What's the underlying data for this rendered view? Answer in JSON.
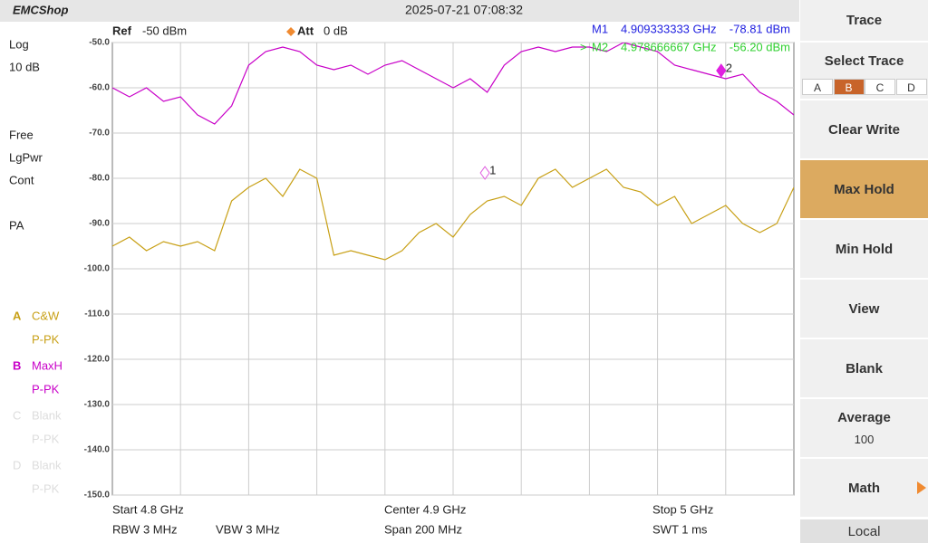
{
  "header": {
    "logo": "EMCShop",
    "datetime": "2025-07-21 07:08:32"
  },
  "settings": {
    "ref_label": "Ref",
    "ref": "-50 dBm",
    "att_label": "Att",
    "att": "0 dB"
  },
  "left_panel": {
    "scale": "Log",
    "div": "10 dB",
    "lines": [
      "Free",
      "LgPwr",
      "Cont"
    ],
    "pa": "PA",
    "inactive": [
      {
        "id": "C",
        "name": "Blank",
        "detector": "P-PK"
      },
      {
        "id": "D",
        "name": "Blank",
        "detector": "P-PK"
      }
    ]
  },
  "marker_readouts": [
    {
      "name": "M1",
      "freq": "4.909333333 GHz",
      "level": "-78.81 dBm",
      "color": "#2020e0"
    },
    {
      "prefix": ">",
      "name": "M2",
      "freq": "4.978666667 GHz",
      "level": "-56.20 dBm",
      "color": "#30d030"
    }
  ],
  "chart_data": {
    "type": "line",
    "xlim": [
      4.8,
      5.0
    ],
    "ylim": [
      -150,
      -50
    ],
    "yticks": [
      {
        "value": -50,
        "label": "-50.0"
      },
      {
        "value": -60,
        "label": "-60.0"
      },
      {
        "value": -70,
        "label": "-70.0"
      },
      {
        "value": -80,
        "label": "-80.0"
      },
      {
        "value": -90,
        "label": "-90.0"
      },
      {
        "value": -100,
        "label": "-100.0"
      },
      {
        "value": -110,
        "label": "-110.0"
      },
      {
        "value": -120,
        "label": "-120.0"
      },
      {
        "value": -130,
        "label": "-130.0"
      },
      {
        "value": -140,
        "label": "-140.0"
      },
      {
        "value": -150,
        "label": "-150.0"
      }
    ],
    "grid": true,
    "x": [
      4.8,
      4.805,
      4.81,
      4.815,
      4.82,
      4.825,
      4.83,
      4.835,
      4.84,
      4.845,
      4.85,
      4.855,
      4.86,
      4.865,
      4.87,
      4.875,
      4.88,
      4.885,
      4.89,
      4.895,
      4.9,
      4.905,
      4.91,
      4.915,
      4.92,
      4.925,
      4.93,
      4.935,
      4.94,
      4.945,
      4.95,
      4.955,
      4.96,
      4.965,
      4.97,
      4.975,
      4.98,
      4.985,
      4.99,
      4.995,
      5.0
    ],
    "series": [
      {
        "id": "A",
        "name": "C&W",
        "detector": "P-PK",
        "color": "#c8a016",
        "values": [
          -95,
          -93,
          -96,
          -94,
          -95,
          -94,
          -96,
          -85,
          -82,
          -80,
          -84,
          -78,
          -80,
          -97,
          -96,
          -97,
          -98,
          -96,
          -92,
          -90,
          -93,
          -88,
          -85,
          -84,
          -86,
          -80,
          -78,
          -82,
          -80,
          -78,
          -82,
          -83,
          -86,
          -84,
          -90,
          -88,
          -86,
          -90,
          -92,
          -90,
          -82
        ]
      },
      {
        "id": "B",
        "name": "MaxH",
        "detector": "P-PK",
        "color": "#c800c8",
        "values": [
          -60,
          -62,
          -60,
          -63,
          -62,
          -66,
          -68,
          -64,
          -55,
          -52,
          -51,
          -52,
          -55,
          -56,
          -55,
          -57,
          -55,
          -54,
          -56,
          -58,
          -60,
          -58,
          -61,
          -55,
          -52,
          -51,
          -52,
          -51,
          -51,
          -52,
          -50,
          -51,
          -52,
          -55,
          -56,
          -57,
          -58,
          -57,
          -61,
          -63,
          -66
        ]
      }
    ],
    "markers": [
      {
        "label": "1",
        "x": 4.909333333,
        "y": -78.81,
        "color": "#e060e0"
      },
      {
        "label": "2",
        "x": 4.978666667,
        "y": -56.2,
        "color": "#e020e0"
      }
    ]
  },
  "footer": {
    "start": "Start  4.8 GHz",
    "center": "Center  4.9 GHz",
    "stop": "Stop  5 GHz",
    "rbw": "RBW  3 MHz",
    "vbw": "VBW  3 MHz",
    "span": "Span  200 MHz",
    "swt": "SWT  1 ms"
  },
  "menu": {
    "title": "Trace",
    "select_trace": "Select Trace",
    "tabs": [
      "A",
      "B",
      "C",
      "D"
    ],
    "selected_tab": 1,
    "buttons": [
      {
        "label": "Clear Write",
        "active": false
      },
      {
        "label": "Max Hold",
        "active": true
      },
      {
        "label": "Min Hold",
        "active": false
      },
      {
        "label": "View",
        "active": false
      },
      {
        "label": "Blank",
        "active": false
      },
      {
        "label": "Average",
        "value": "100",
        "active": false
      },
      {
        "label": "Math",
        "active": false
      }
    ],
    "local": "Local"
  }
}
